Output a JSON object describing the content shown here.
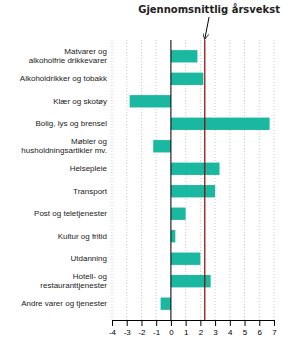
{
  "chart_data": {
    "type": "bar",
    "orientation": "horizontal",
    "title": "Gjennomsnittlig årsvekst",
    "categories": [
      "Andre varer og tjenester",
      "Hotell- og\nrestauranttjenester",
      "Utdanning",
      "Kultur og fritid",
      "Post og teletjenester",
      "Transport",
      "Helsepleie",
      "Møbler og\nhusholdningsartikler mv.",
      "Bolig, lys og brensel",
      "Klær og skotøy",
      "Alkoholdrikker og tobakk",
      "Matvarer og\nalkoholfrie drikkevarer"
    ],
    "values": [
      -0.7,
      2.7,
      2.0,
      0.3,
      1.0,
      3.0,
      3.3,
      -1.2,
      6.7,
      -2.8,
      2.2,
      1.8
    ],
    "color": "#1ab8a0",
    "reference_lines": [
      {
        "value": 2.3,
        "color": "#8b0000"
      }
    ],
    "xlim": [
      -4,
      7
    ],
    "xticks": [
      -4,
      -3,
      -2,
      -1,
      0,
      1,
      2,
      3,
      4,
      5,
      6,
      7
    ],
    "grid": true
  }
}
